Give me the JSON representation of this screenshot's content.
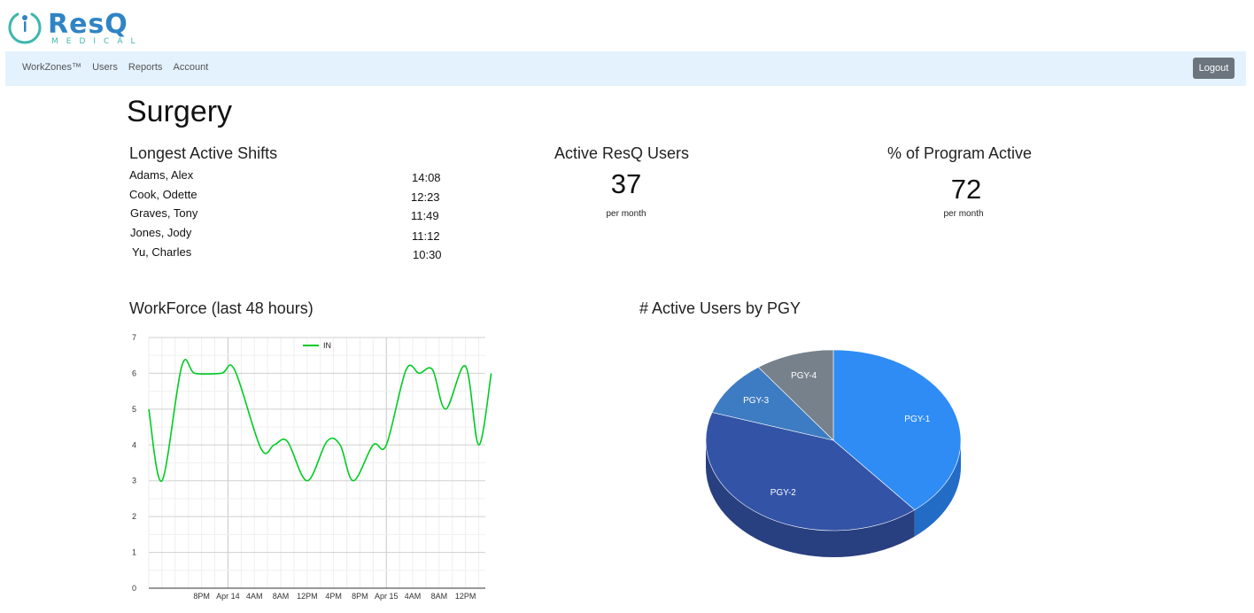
{
  "brand": {
    "name": "ResQ",
    "sub": "MEDICAL",
    "primary_color": "#2f84c4",
    "accent_color": "#3fb7ad"
  },
  "nav": {
    "items": [
      "WorkZones™",
      "Users",
      "Reports",
      "Account"
    ],
    "logout_label": "Logout",
    "background": "#e3f2fd"
  },
  "page": {
    "title": "Surgery"
  },
  "shifts": {
    "heading": "Longest Active Shifts",
    "rows": [
      {
        "name": "Adams, Alex",
        "time": "14:08"
      },
      {
        "name": "Cook, Odette",
        "time": "12:23"
      },
      {
        "name": "Graves, Tony",
        "time": "11:49"
      },
      {
        "name": "Jones, Jody",
        "time": "11:12"
      },
      {
        "name": "Yu, Charles",
        "time": "10:30"
      }
    ]
  },
  "active_users": {
    "heading": "Active ResQ Users",
    "value": "37",
    "unit": "per month"
  },
  "program_active": {
    "heading": "% of Program Active",
    "value": "72",
    "unit": "per month"
  },
  "chart_data": [
    {
      "type": "line",
      "title": "WorkForce (last 48 hours)",
      "ylim": [
        0,
        7
      ],
      "y_ticks": [
        "0",
        "1",
        "2",
        "3",
        "4",
        "5",
        "6",
        "7"
      ],
      "x_tick_labels": [
        "8PM",
        "Apr 14",
        "4AM",
        "8AM",
        "12PM",
        "4PM",
        "8PM",
        "Apr 15",
        "4AM",
        "8AM",
        "12PM"
      ],
      "x_hours_range": [
        12,
        63
      ],
      "grid": true,
      "legend": "top-center",
      "series": [
        {
          "name": "IN",
          "color": "#00cc22",
          "points": [
            [
              12,
              5
            ],
            [
              14,
              3
            ],
            [
              17,
              6.2
            ],
            [
              19,
              6
            ],
            [
              23,
              6
            ],
            [
              25,
              6.1
            ],
            [
              29,
              3.9
            ],
            [
              31,
              4
            ],
            [
              33,
              4.1
            ],
            [
              36,
              3
            ],
            [
              39,
              4.1
            ],
            [
              41,
              4
            ],
            [
              43,
              3
            ],
            [
              46,
              4
            ],
            [
              48,
              4
            ],
            [
              51,
              6.1
            ],
            [
              53,
              6
            ],
            [
              55,
              6.1
            ],
            [
              57,
              5
            ],
            [
              60,
              6.2
            ],
            [
              62,
              4
            ],
            [
              63.9,
              6
            ]
          ]
        }
      ]
    },
    {
      "type": "pie",
      "title": "# Active Users by PGY",
      "slices": [
        {
          "label": "PGY-1",
          "value": 39,
          "color": "#2f8cf4",
          "side_color": "#236cc6"
        },
        {
          "label": "PGY-2",
          "value": 41,
          "color": "#3353a6",
          "side_color": "#283f80"
        },
        {
          "label": "PGY-3",
          "value": 10,
          "color": "#3d7cc2",
          "side_color": "#2f5f96"
        },
        {
          "label": "PGY-4",
          "value": 10,
          "color": "#77818c",
          "side_color": "#5b636b"
        }
      ]
    }
  ]
}
